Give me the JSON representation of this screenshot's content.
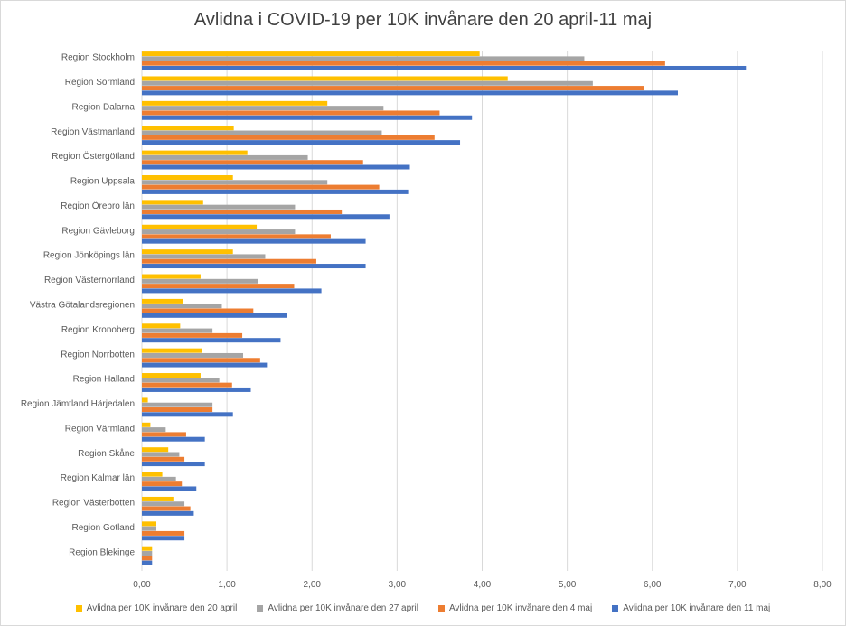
{
  "chart_data": {
    "type": "bar",
    "orientation": "horizontal",
    "title": "Avlidna i COVID-19 per 10K invånare den 20 april-11 maj",
    "categories": [
      "Region Stockholm",
      "Region Sörmland",
      "Region Dalarna",
      "Region Västmanland",
      "Region Östergötland",
      "Region Uppsala",
      "Region Örebro län",
      "Region Gävleborg",
      "Region Jönköpings län",
      "Region Västernorrland",
      "Västra Götalandsregionen",
      "Region Kronoberg",
      "Region Norrbotten",
      "Region Halland",
      "Region Jämtland Härjedalen",
      "Region Värmland",
      "Region Skåne",
      "Region Kalmar län",
      "Region Västerbotten",
      "Region Gotland",
      "Region Blekinge"
    ],
    "series": [
      {
        "name": "Avlidna per 10K invånare den 20 april",
        "color": "#ffc000",
        "values": [
          3.97,
          4.3,
          2.18,
          1.08,
          1.24,
          1.07,
          0.72,
          1.35,
          1.07,
          0.69,
          0.48,
          0.45,
          0.71,
          0.69,
          0.07,
          0.1,
          0.31,
          0.24,
          0.37,
          0.17,
          0.12
        ]
      },
      {
        "name": "Avlidna per 10K invånare den 27 april",
        "color": "#a5a5a5",
        "values": [
          5.2,
          5.3,
          2.84,
          2.82,
          1.95,
          2.18,
          1.8,
          1.8,
          1.45,
          1.37,
          0.94,
          0.83,
          1.19,
          0.91,
          0.83,
          0.28,
          0.44,
          0.4,
          0.5,
          0.17,
          0.12
        ]
      },
      {
        "name": "Avlidna per 10K invånare den 4 maj",
        "color": "#ed7d31",
        "values": [
          6.15,
          5.9,
          3.5,
          3.44,
          2.6,
          2.79,
          2.35,
          2.22,
          2.05,
          1.79,
          1.31,
          1.18,
          1.39,
          1.06,
          0.83,
          0.52,
          0.5,
          0.47,
          0.57,
          0.5,
          0.12
        ]
      },
      {
        "name": "Avlidna per 10K invånare den  11 maj",
        "color": "#4472c4",
        "values": [
          7.1,
          6.3,
          3.88,
          3.74,
          3.15,
          3.13,
          2.91,
          2.63,
          2.63,
          2.11,
          1.71,
          1.63,
          1.47,
          1.28,
          1.07,
          0.74,
          0.74,
          0.64,
          0.61,
          0.5,
          0.12
        ]
      }
    ],
    "xlim": [
      0,
      8
    ],
    "xticks": [
      "0,00",
      "1,00",
      "2,00",
      "3,00",
      "4,00",
      "5,00",
      "6,00",
      "7,00",
      "8,00"
    ],
    "grid": true,
    "legend": "bottom"
  }
}
